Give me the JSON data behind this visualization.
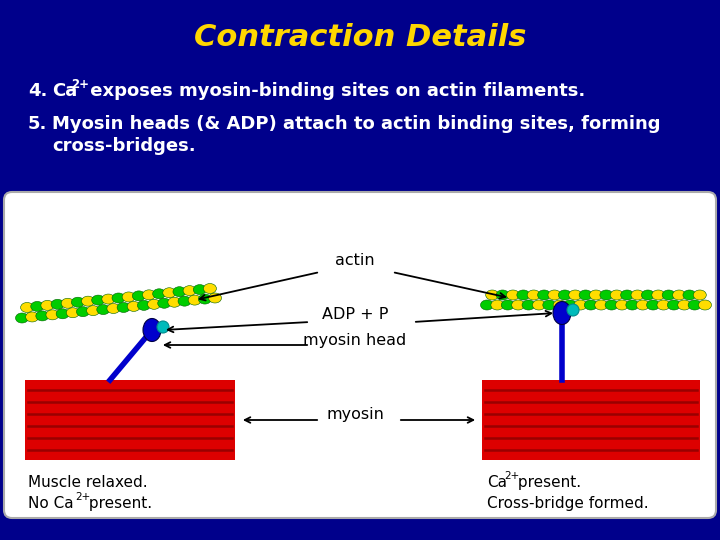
{
  "title": "Contraction Details",
  "title_color": "#FFD700",
  "title_fontsize": 22,
  "bg_color": "#00008B",
  "text_color": "#FFFFFF",
  "label_actin": "actin",
  "label_adp": "ADP + P",
  "label_myosin_head": "myosin head",
  "label_myosin": "myosin",
  "label_left1": "Muscle relaxed.",
  "label_left2_a": "No Ca",
  "label_left2_sup": "2+",
  "label_left2_b": " present.",
  "label_right1_a": "Ca",
  "label_right1_sup": "2+",
  "label_right1_b": " present.",
  "label_right2": "Cross-bridge formed.",
  "red_color": "#DD0000",
  "dark_red": "#990000",
  "green_color": "#00CC00",
  "yellow_color": "#FFDD00",
  "blue_color": "#0000CC",
  "cyan_color": "#00BBBB",
  "white": "#FFFFFF",
  "black": "#000000"
}
